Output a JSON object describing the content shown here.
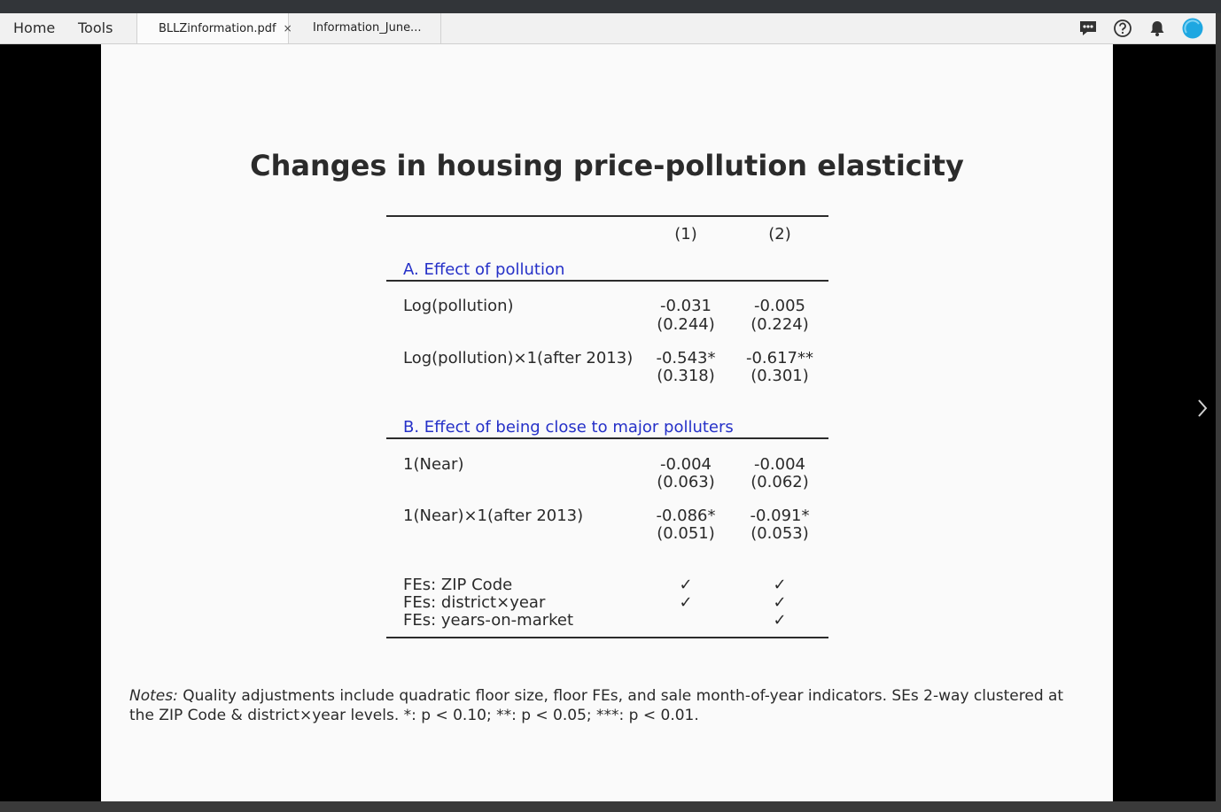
{
  "nav": {
    "home": "Home",
    "tools": "Tools"
  },
  "tabs": [
    {
      "label": "BLLZinformation.pdf",
      "close": "×"
    },
    {
      "label": "Information_June..."
    }
  ],
  "toolbar_icons": [
    "comment-icon",
    "help-icon",
    "bell-icon",
    "profile-avatar"
  ],
  "slide": {
    "title": "Changes in housing price-pollution elasticity",
    "col1": "(1)",
    "col2": "(2)",
    "sectionA": "A. Effect of pollution",
    "sectionB": "B. Effect of being close to major polluters",
    "rows": [
      {
        "label": "Log(pollution)",
        "c1": "-0.031",
        "c1se": "(0.244)",
        "c2": "-0.005",
        "c2se": "(0.224)"
      },
      {
        "label": "Log(pollution)×1(after 2013)",
        "c1": "-0.543*",
        "c1se": "(0.318)",
        "c2": "-0.617**",
        "c2se": "(0.301)"
      },
      {
        "label": "1(Near)",
        "c1": "-0.004",
        "c1se": "(0.063)",
        "c2": "-0.004",
        "c2se": "(0.062)"
      },
      {
        "label": "1(Near)×1(after 2013)",
        "c1": "-0.086*",
        "c1se": "(0.051)",
        "c2": "-0.091*",
        "c2se": "(0.053)"
      }
    ],
    "fes": [
      {
        "label": "FEs:  ZIP Code",
        "c1": "✓",
        "c2": "✓"
      },
      {
        "label": "FEs:  district×year",
        "c1": "✓",
        "c2": "✓"
      },
      {
        "label": "FEs:  years-on-market",
        "c1": "",
        "c2": "✓"
      }
    ],
    "notes_label": "Notes:",
    "notes_text": " Quality adjustments include quadratic floor size, floor FEs, and sale month-of-year indicators. SEs 2-way clustered at the ZIP Code & district×year levels. *: p < 0.10; **: p < 0.05; ***: p < 0.01."
  },
  "colors": {
    "section": "#2530c8",
    "page": "#fafafa",
    "avatar": "#1ea7e1"
  }
}
